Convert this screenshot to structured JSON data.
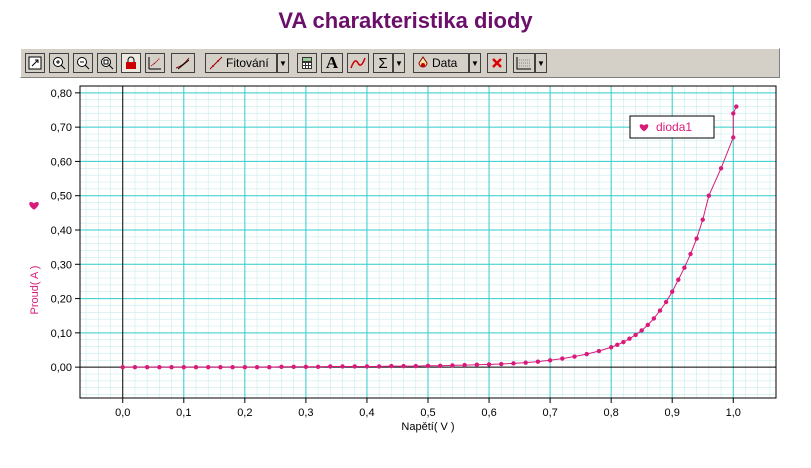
{
  "title": "VA charakteristika diody",
  "toolbar": {
    "fit_label": "Fitování",
    "data_label": "Data",
    "sigma_symbol": "Σ",
    "text_symbol": "A"
  },
  "chart_data": {
    "type": "scatter",
    "title": "VA charakteristika diody",
    "xlabel": "Napětí( V )",
    "ylabel": "Proud( A )",
    "xlim": [
      -0.07,
      1.07
    ],
    "ylim": [
      -0.09,
      0.82
    ],
    "x_ticks": [
      "0,0",
      "0,1",
      "0,2",
      "0,3",
      "0,4",
      "0,5",
      "0,6",
      "0,7",
      "0,8",
      "0,9",
      "1,0"
    ],
    "y_ticks": [
      "0,00",
      "0,10",
      "0,20",
      "0,30",
      "0,40",
      "0,50",
      "0,60",
      "0,70",
      "0,80"
    ],
    "grid": true,
    "legend": "top-right",
    "colors": {
      "series": "#d81b7a",
      "grid": "#33cccc",
      "minor_grid": "#c8ecec",
      "ylabel": "#d81b7a"
    },
    "series": [
      {
        "name": "dioda1",
        "x": [
          0.0,
          0.02,
          0.04,
          0.06,
          0.08,
          0.1,
          0.12,
          0.14,
          0.16,
          0.18,
          0.2,
          0.22,
          0.24,
          0.26,
          0.28,
          0.3,
          0.32,
          0.34,
          0.36,
          0.38,
          0.4,
          0.42,
          0.44,
          0.46,
          0.48,
          0.5,
          0.52,
          0.54,
          0.56,
          0.58,
          0.6,
          0.62,
          0.64,
          0.66,
          0.68,
          0.7,
          0.72,
          0.74,
          0.76,
          0.78,
          0.8,
          0.81,
          0.82,
          0.83,
          0.84,
          0.85,
          0.86,
          0.87,
          0.88,
          0.89,
          0.9,
          0.91,
          0.92,
          0.93,
          0.94,
          0.95,
          0.96,
          0.98,
          1.0,
          1.0,
          1.005
        ],
        "y": [
          0.0,
          0.0,
          0.0,
          0.0,
          0.0,
          0.0,
          0.0,
          0.0,
          0.0,
          0.0,
          0.0,
          0.0,
          0.0,
          0.001,
          0.001,
          0.001,
          0.001,
          0.002,
          0.002,
          0.002,
          0.002,
          0.002,
          0.003,
          0.003,
          0.003,
          0.004,
          0.004,
          0.005,
          0.006,
          0.007,
          0.008,
          0.009,
          0.011,
          0.013,
          0.016,
          0.02,
          0.025,
          0.031,
          0.038,
          0.047,
          0.058,
          0.065,
          0.073,
          0.083,
          0.094,
          0.107,
          0.123,
          0.142,
          0.165,
          0.19,
          0.22,
          0.255,
          0.29,
          0.33,
          0.375,
          0.43,
          0.5,
          0.58,
          0.67,
          0.74,
          0.76
        ]
      }
    ]
  }
}
